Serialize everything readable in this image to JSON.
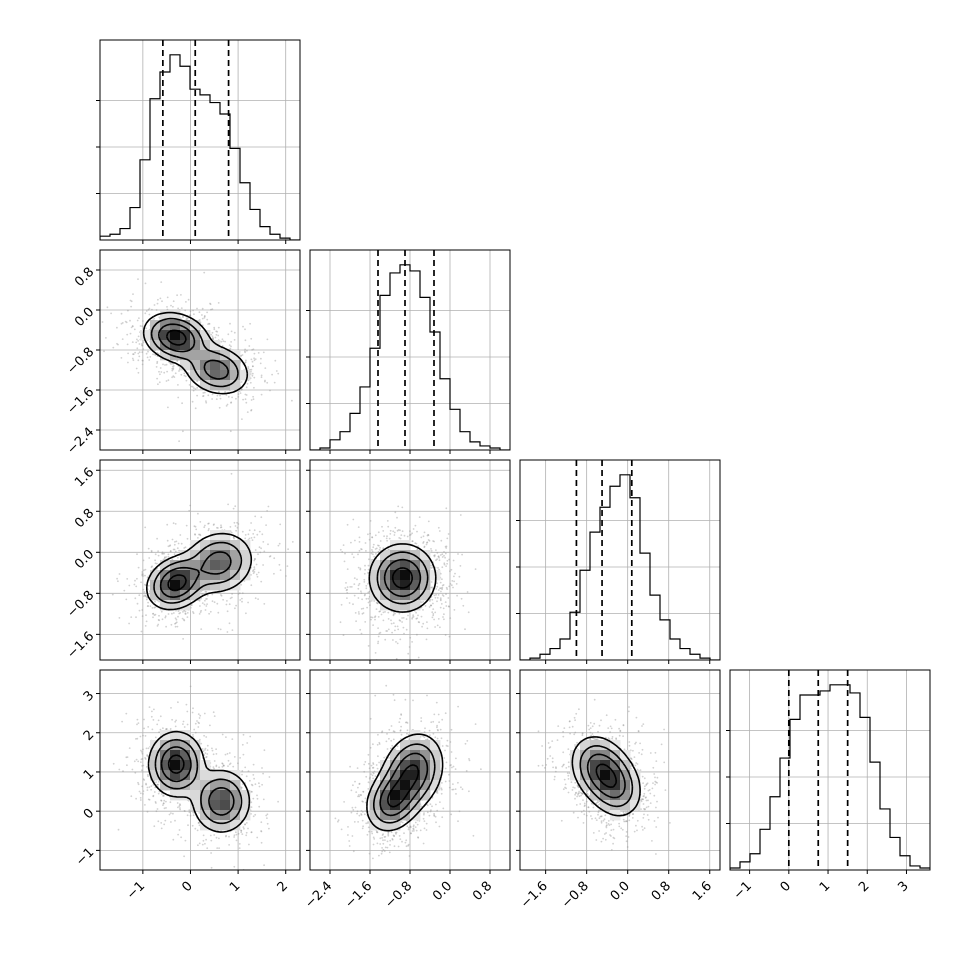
{
  "chart_data": {
    "type": "corner",
    "title": "",
    "parameters": [
      {
        "index": 0,
        "range": [
          -1.9,
          2.3
        ],
        "ticks": [
          -1,
          0,
          1,
          2
        ],
        "tick_labels": [
          "−1",
          "0",
          "1",
          "2"
        ],
        "quantiles": [
          -0.58,
          0.1,
          0.8
        ],
        "hist": {
          "start": -1.9,
          "bin_width": 0.21,
          "counts": [
            0.02,
            0.03,
            0.06,
            0.17,
            0.42,
            0.74,
            0.88,
            0.97,
            0.91,
            0.79,
            0.76,
            0.72,
            0.66,
            0.48,
            0.3,
            0.16,
            0.07,
            0.03,
            0.01,
            0.0
          ]
        }
      },
      {
        "index": 1,
        "range": [
          -2.8,
          1.2
        ],
        "ticks": [
          -2.4,
          -1.6,
          -0.8,
          0.0,
          0.8
        ],
        "tick_labels": [
          "−2.4",
          "−1.6",
          "−0.8",
          "0.0",
          "0.8"
        ],
        "quantiles": [
          -1.44,
          -0.9,
          -0.32
        ],
        "hist": {
          "start": -2.8,
          "bin_width": 0.2,
          "counts": [
            0.0,
            0.01,
            0.05,
            0.09,
            0.18,
            0.31,
            0.5,
            0.76,
            0.87,
            0.91,
            0.88,
            0.75,
            0.58,
            0.35,
            0.2,
            0.09,
            0.04,
            0.02,
            0.01,
            0.0
          ]
        }
      },
      {
        "index": 2,
        "range": [
          -2.1,
          1.8
        ],
        "ticks": [
          -1.6,
          -0.8,
          0.0,
          0.8,
          1.6
        ],
        "tick_labels": [
          "−1.6",
          "−0.8",
          "0.0",
          "0.8",
          "1.6"
        ],
        "quantiles": [
          -1.0,
          -0.5,
          0.08
        ],
        "hist": {
          "start": -2.1,
          "bin_width": 0.195,
          "counts": [
            0.0,
            0.01,
            0.03,
            0.06,
            0.11,
            0.25,
            0.47,
            0.67,
            0.8,
            0.91,
            0.97,
            0.85,
            0.56,
            0.34,
            0.21,
            0.11,
            0.06,
            0.03,
            0.01,
            0.0
          ]
        }
      },
      {
        "index": 3,
        "range": [
          -1.5,
          3.6
        ],
        "ticks": [
          -1,
          0,
          1,
          2,
          3
        ],
        "tick_labels": [
          "−1",
          "0",
          "1",
          "2",
          "3"
        ],
        "quantiles": [
          0.0,
          0.75,
          1.5
        ],
        "hist": {
          "start": -1.5,
          "bin_width": 0.255,
          "counts": [
            0.01,
            0.04,
            0.08,
            0.2,
            0.36,
            0.55,
            0.74,
            0.86,
            0.86,
            0.88,
            0.91,
            0.91,
            0.87,
            0.75,
            0.53,
            0.3,
            0.16,
            0.07,
            0.02,
            0.01
          ]
        }
      }
    ],
    "pairs": [
      {
        "x": 0,
        "y": 1,
        "blobs": [
          {
            "cx": -0.3,
            "cy": -0.55,
            "sx": 0.33,
            "sy": 0.24,
            "w": 1.0,
            "r": -0.2
          },
          {
            "cx": 0.55,
            "cy": -1.2,
            "sx": 0.34,
            "sy": 0.25,
            "w": 0.7,
            "r": -0.2
          }
        ]
      },
      {
        "x": 0,
        "y": 2,
        "blobs": [
          {
            "cx": -0.3,
            "cy": -0.6,
            "sx": 0.3,
            "sy": 0.25,
            "w": 1.0,
            "r": 0.2
          },
          {
            "cx": 0.6,
            "cy": -0.2,
            "sx": 0.36,
            "sy": 0.3,
            "w": 0.7,
            "r": 0.1
          }
        ]
      },
      {
        "x": 1,
        "y": 2,
        "blobs": [
          {
            "cx": -0.95,
            "cy": -0.5,
            "sx": 0.32,
            "sy": 0.32,
            "w": 1.0,
            "r": 0.0
          }
        ]
      },
      {
        "x": 0,
        "y": 3,
        "blobs": [
          {
            "cx": -0.3,
            "cy": 1.2,
            "sx": 0.28,
            "sy": 0.4,
            "w": 1.0,
            "r": 0.0
          },
          {
            "cx": 0.65,
            "cy": 0.25,
            "sx": 0.3,
            "sy": 0.4,
            "w": 0.8,
            "r": 0.0
          }
        ]
      },
      {
        "x": 1,
        "y": 3,
        "blobs": [
          {
            "cx": -1.15,
            "cy": 0.25,
            "sx": 0.26,
            "sy": 0.38,
            "w": 0.9,
            "r": 0.2
          },
          {
            "cx": -0.75,
            "cy": 1.0,
            "sx": 0.3,
            "sy": 0.48,
            "w": 1.0,
            "r": 0.2
          }
        ]
      },
      {
        "x": 2,
        "y": 3,
        "blobs": [
          {
            "cx": -0.55,
            "cy": 1.1,
            "sx": 0.28,
            "sy": 0.42,
            "w": 1.0,
            "r": -0.2
          },
          {
            "cx": -0.25,
            "cy": 0.65,
            "sx": 0.27,
            "sy": 0.42,
            "w": 0.85,
            "r": -0.2
          }
        ]
      }
    ],
    "contour_levels": [
      0.12,
      0.3,
      0.55,
      0.85
    ],
    "grid": true,
    "legend": "none"
  }
}
